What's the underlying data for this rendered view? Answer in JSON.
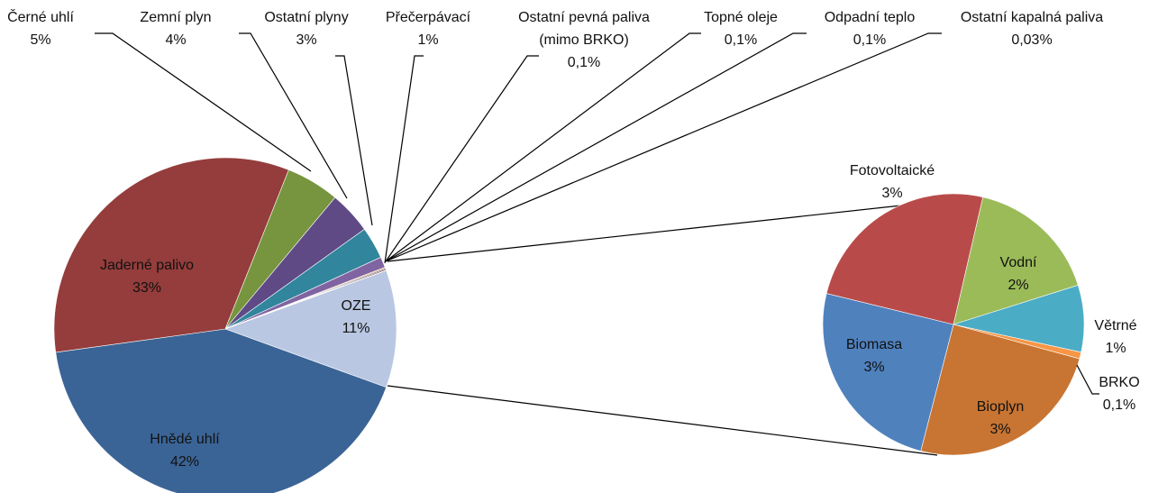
{
  "chart_data": [
    {
      "type": "pie",
      "categories": [
        "OZE",
        "Hnědé uhlí",
        "Jaderné palivo",
        "Černé uhlí",
        "Zemní plyn",
        "Ostatní plyny",
        "Přečerpávací",
        "Ostatní pevná paliva\n(mimo BRKO)",
        "Topné oleje",
        "Odpadní teplo",
        "Ostatní kapalná paliva"
      ],
      "values": [
        11,
        42,
        33,
        5,
        4,
        3,
        1,
        0.1,
        0.1,
        0.1,
        0.03
      ],
      "value_labels": [
        "11%",
        "42%",
        "33%",
        "5%",
        "4%",
        "3%",
        "1%",
        "0,1%",
        "0,1%",
        "0,1%",
        "0,03%"
      ],
      "colors": [
        "#b9c7e2",
        "#3b6496",
        "#943d3c",
        "#77953e",
        "#5f4a86",
        "#31859c",
        "#8064a2",
        "#f79646",
        "#2c4d75",
        "#772c2a",
        "#5f7530"
      ]
    },
    {
      "type": "pie",
      "categories": [
        "Vodní",
        "Větrné",
        "BRKO",
        "Bioplyn",
        "Biomasa",
        "Fotovoltaické"
      ],
      "values": [
        2,
        1,
        0.1,
        3,
        3,
        3
      ],
      "value_labels": [
        "2%",
        "1%",
        "0,1%",
        "3%",
        "3%",
        "3%"
      ],
      "colors": [
        "#9bbb59",
        "#4bacc6",
        "#f79646",
        "#c87533",
        "#4f81bd",
        "#b84b49"
      ]
    }
  ]
}
